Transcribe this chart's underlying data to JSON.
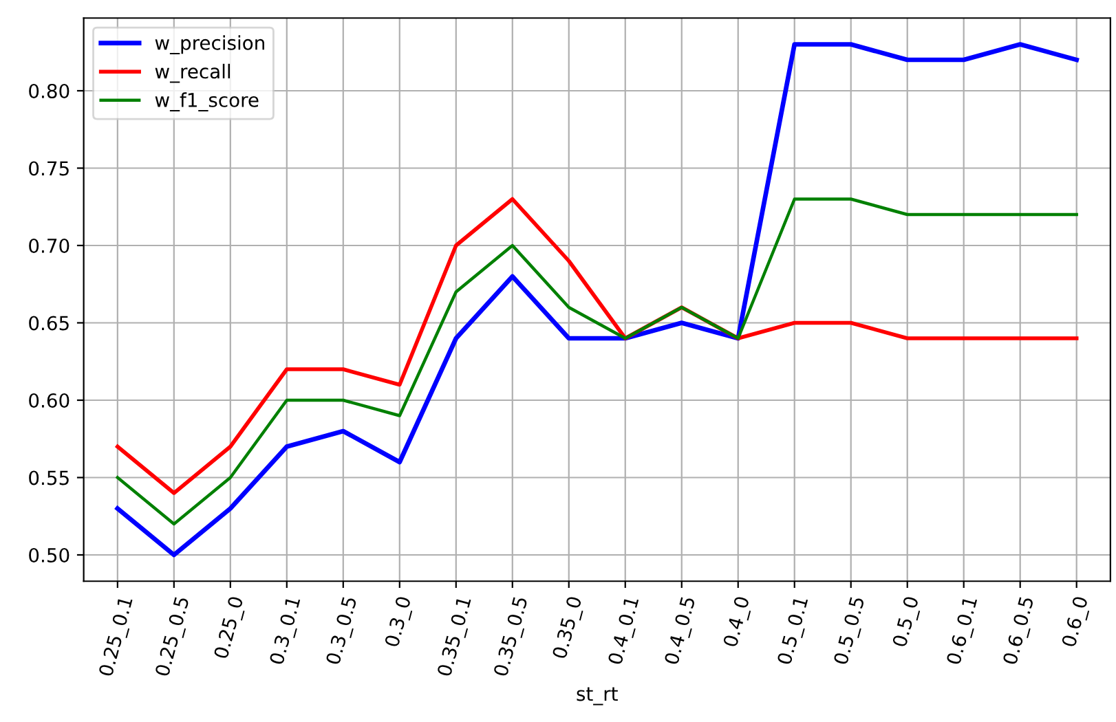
{
  "chart_data": {
    "type": "line",
    "xlabel": "st_rt",
    "categories": [
      "0.25_0.1",
      "0.25_0.5",
      "0.25_0",
      "0.3_0.1",
      "0.3_0.5",
      "0.3_0",
      "0.35_0.1",
      "0.35_0.5",
      "0.35_0",
      "0.4_0.1",
      "0.4_0.5",
      "0.4_0",
      "0.5_0.1",
      "0.5_0.5",
      "0.5_0",
      "0.6_0.1",
      "0.6_0.5",
      "0.6_0"
    ],
    "series": [
      {
        "name": "w_precision",
        "color": "#0000ff",
        "values": [
          0.53,
          0.5,
          0.53,
          0.57,
          0.58,
          0.56,
          0.64,
          0.68,
          0.64,
          0.64,
          0.65,
          0.64,
          0.83,
          0.83,
          0.82,
          0.82,
          0.83,
          0.82
        ]
      },
      {
        "name": "w_recall",
        "color": "#ff0000",
        "values": [
          0.57,
          0.54,
          0.57,
          0.62,
          0.62,
          0.61,
          0.7,
          0.73,
          0.69,
          0.64,
          0.66,
          0.64,
          0.65,
          0.65,
          0.64,
          0.64,
          0.64,
          0.64
        ]
      },
      {
        "name": "w_f1_score",
        "color": "#008000",
        "values": [
          0.55,
          0.52,
          0.55,
          0.6,
          0.6,
          0.59,
          0.67,
          0.7,
          0.66,
          0.64,
          0.66,
          0.64,
          0.73,
          0.73,
          0.72,
          0.72,
          0.72,
          0.72
        ]
      }
    ],
    "ylim": [
      0.483,
      0.847
    ],
    "yticks": [
      {
        "value": 0.5,
        "label": "0.50"
      },
      {
        "value": 0.55,
        "label": "0.55"
      },
      {
        "value": 0.6,
        "label": "0.60"
      },
      {
        "value": 0.65,
        "label": "0.65"
      },
      {
        "value": 0.7,
        "label": "0.70"
      },
      {
        "value": 0.75,
        "label": "0.75"
      },
      {
        "value": 0.8,
        "label": "0.80"
      }
    ],
    "grid": true,
    "legend": "top left"
  }
}
